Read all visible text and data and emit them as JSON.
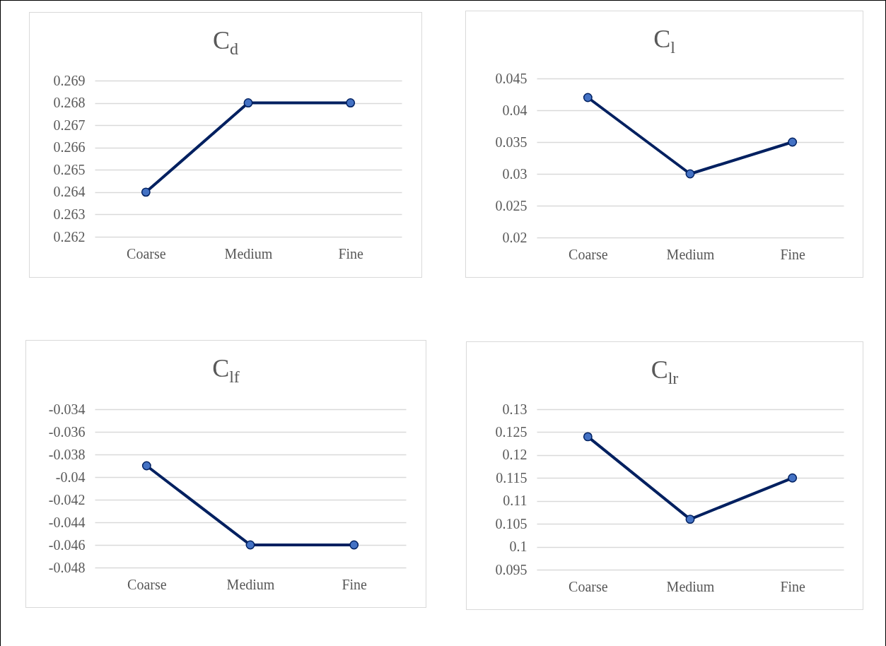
{
  "chart_data": [
    {
      "type": "line",
      "title": "C$_{d}$",
      "categories": [
        "Coarse",
        "Medium",
        "Fine"
      ],
      "series": [
        {
          "color": "#002060",
          "values": [
            0.264,
            0.268,
            0.268
          ]
        }
      ],
      "ylim": [
        0.262,
        0.269
      ],
      "yticks": [
        0.262,
        0.263,
        0.264,
        0.265,
        0.266,
        0.267,
        0.268,
        0.269
      ],
      "grid": "y",
      "marker": "circle"
    },
    {
      "type": "line",
      "title": "C$_{l}$",
      "categories": [
        "Coarse",
        "Medium",
        "Fine"
      ],
      "series": [
        {
          "color": "#002060",
          "values": [
            0.042,
            0.03,
            0.035
          ]
        }
      ],
      "ylim": [
        0.02,
        0.045
      ],
      "yticks": [
        0.02,
        0.025,
        0.03,
        0.035,
        0.04,
        0.045
      ],
      "grid": "y",
      "marker": "circle"
    },
    {
      "type": "line",
      "title": "C$_{lf}$",
      "categories": [
        "Coarse",
        "Medium",
        "Fine"
      ],
      "series": [
        {
          "color": "#002060",
          "values": [
            -0.039,
            -0.046,
            -0.046
          ]
        }
      ],
      "ylim": [
        -0.048,
        -0.034
      ],
      "yticks": [
        -0.048,
        -0.046,
        -0.044,
        -0.042,
        -0.04,
        -0.038,
        -0.036,
        -0.034
      ],
      "grid": "y",
      "marker": "circle"
    },
    {
      "type": "line",
      "title": "C$_{lr}$",
      "categories": [
        "Coarse",
        "Medium",
        "Fine"
      ],
      "series": [
        {
          "color": "#002060",
          "values": [
            0.124,
            0.106,
            0.115
          ]
        }
      ],
      "ylim": [
        0.095,
        0.13
      ],
      "yticks": [
        0.095,
        0.1,
        0.105,
        0.11,
        0.115,
        0.12,
        0.125,
        0.13
      ],
      "grid": "y",
      "marker": "circle"
    }
  ]
}
